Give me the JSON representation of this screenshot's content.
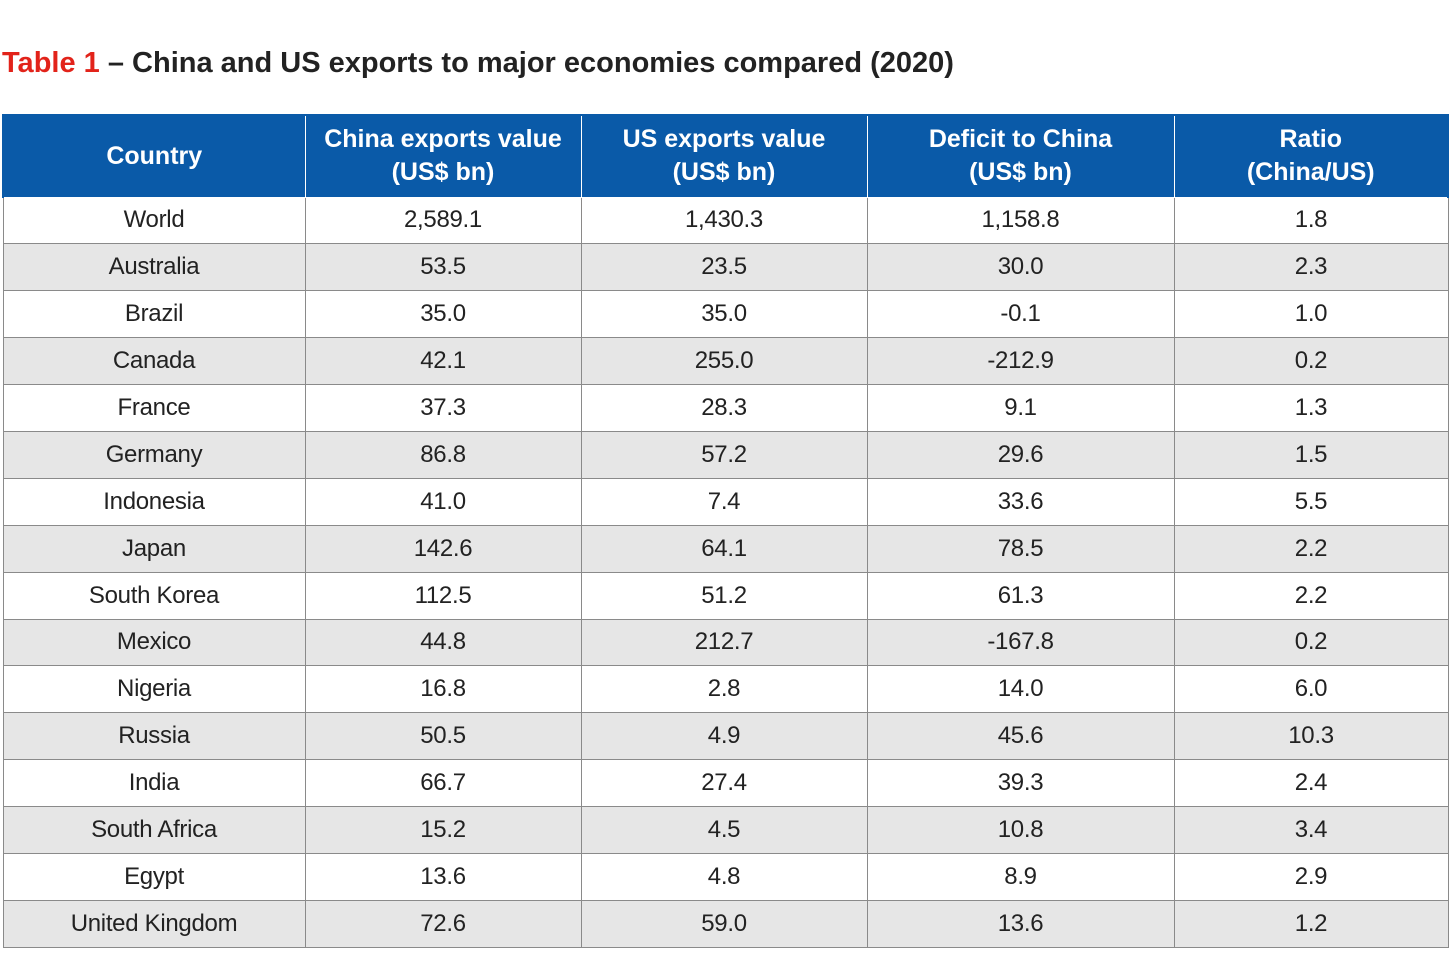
{
  "title": {
    "label": "Table 1",
    "separator": "–",
    "text": "China and US exports to major economies compared (2020)"
  },
  "colors": {
    "title_label": "#e2231a",
    "header_background": "#0a5aa8",
    "header_text": "#ffffff",
    "stripe_row": "#e6e6e6",
    "grid_line": "#8a8a8a"
  },
  "chart_data": {
    "type": "table",
    "columns": [
      {
        "line1": "Country",
        "line2": ""
      },
      {
        "line1": "China exports value",
        "line2": "(US$ bn)"
      },
      {
        "line1": "US exports value",
        "line2": "(US$ bn)"
      },
      {
        "line1": "Deficit to China",
        "line2": "(US$ bn)"
      },
      {
        "line1": "Ratio",
        "line2": "(China/US)"
      }
    ],
    "rows": [
      [
        "World",
        "2,589.1",
        "1,430.3",
        "1,158.8",
        "1.8"
      ],
      [
        "Australia",
        "53.5",
        "23.5",
        "30.0",
        "2.3"
      ],
      [
        "Brazil",
        "35.0",
        "35.0",
        "-0.1",
        "1.0"
      ],
      [
        "Canada",
        "42.1",
        "255.0",
        "-212.9",
        "0.2"
      ],
      [
        "France",
        "37.3",
        "28.3",
        "9.1",
        "1.3"
      ],
      [
        "Germany",
        "86.8",
        "57.2",
        "29.6",
        "1.5"
      ],
      [
        "Indonesia",
        "41.0",
        "7.4",
        "33.6",
        "5.5"
      ],
      [
        "Japan",
        "142.6",
        "64.1",
        "78.5",
        "2.2"
      ],
      [
        "South Korea",
        "112.5",
        "51.2",
        "61.3",
        "2.2"
      ],
      [
        "Mexico",
        "44.8",
        "212.7",
        "-167.8",
        "0.2"
      ],
      [
        "Nigeria",
        "16.8",
        "2.8",
        "14.0",
        "6.0"
      ],
      [
        "Russia",
        "50.5",
        "4.9",
        "45.6",
        "10.3"
      ],
      [
        "India",
        "66.7",
        "27.4",
        "39.3",
        "2.4"
      ],
      [
        "South Africa",
        "15.2",
        "4.5",
        "10.8",
        "3.4"
      ],
      [
        "Egypt",
        "13.6",
        "4.8",
        "8.9",
        "2.9"
      ],
      [
        "United Kingdom",
        "72.6",
        "59.0",
        "13.6",
        "1.2"
      ]
    ]
  }
}
